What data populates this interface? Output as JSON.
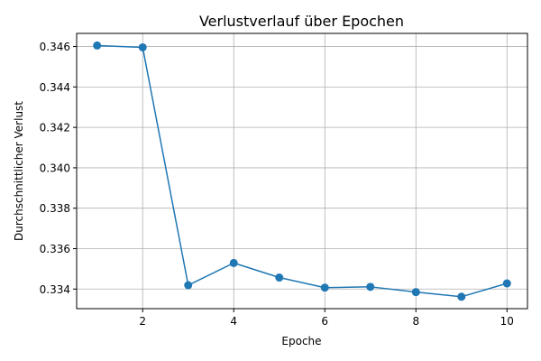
{
  "chart_data": {
    "type": "line",
    "title": "Verlustverlauf über Epochen",
    "xlabel": "Epoche",
    "ylabel": "Durchschnittlicher Verlust",
    "x": [
      1,
      2,
      3,
      4,
      5,
      6,
      7,
      8,
      9,
      10
    ],
    "series": [
      {
        "values": [
          0.34605,
          0.34596,
          0.33419,
          0.33529,
          0.33457,
          0.33407,
          0.33411,
          0.33385,
          0.33362,
          0.33428
        ],
        "color": "#1f77b4",
        "marker": "circle"
      }
    ],
    "xlim": [
      0.55,
      10.45
    ],
    "ylim": [
      0.33303,
      0.34665
    ],
    "xticks": [
      2,
      4,
      6,
      8,
      10
    ],
    "yticks": [
      0.334,
      0.336,
      0.338,
      0.34,
      0.342,
      0.344,
      0.346
    ],
    "xtick_labels": [
      "2",
      "4",
      "6",
      "8",
      "10"
    ],
    "ytick_labels": [
      "0.334",
      "0.336",
      "0.338",
      "0.340",
      "0.342",
      "0.344",
      "0.346"
    ],
    "grid": true
  }
}
